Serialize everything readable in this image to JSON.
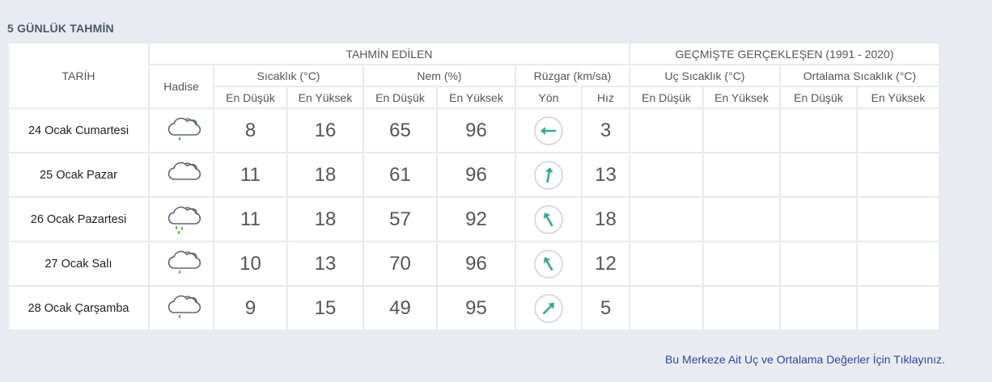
{
  "title": "5 GÜNLÜK TAHMİN",
  "headers": {
    "date": "TARİH",
    "forecast": "TAHMİN EDİLEN",
    "history": "GEÇMİŞTE GERÇEKLEŞEN (1991 - 2020)",
    "event": "Hadise",
    "temperature": "Sıcaklık (°C)",
    "humidity": "Nem (%)",
    "wind": "Rüzgar (km/sa)",
    "extreme_temp": "Uç Sıcaklık (°C)",
    "avg_temp": "Ortalama Sıcaklık (°C)",
    "min": "En Düşük",
    "max": "En Yüksek",
    "direction": "Yön",
    "speed": "Hız"
  },
  "rows": [
    {
      "date": "24 Ocak Cumartesi",
      "icon": "cloud-rain-icon",
      "temp_min": "8",
      "temp_max": "16",
      "hum_min": "65",
      "hum_max": "96",
      "wind_dir_deg": 270,
      "wind_speed": "3"
    },
    {
      "date": "25 Ocak Pazar",
      "icon": "cloud-icon",
      "temp_min": "11",
      "temp_max": "18",
      "hum_min": "61",
      "hum_max": "96",
      "wind_dir_deg": 10,
      "wind_speed": "13"
    },
    {
      "date": "26 Ocak Pazartesi",
      "icon": "showers-icon",
      "temp_min": "11",
      "temp_max": "18",
      "hum_min": "57",
      "hum_max": "92",
      "wind_dir_deg": 330,
      "wind_speed": "18"
    },
    {
      "date": "27 Ocak Salı",
      "icon": "cloud-rain-icon",
      "temp_min": "10",
      "temp_max": "13",
      "hum_min": "70",
      "hum_max": "96",
      "wind_dir_deg": 330,
      "wind_speed": "12"
    },
    {
      "date": "28 Ocak Çarşamba",
      "icon": "cloud-rain-icon",
      "temp_min": "9",
      "temp_max": "15",
      "hum_min": "49",
      "hum_max": "95",
      "wind_dir_deg": 45,
      "wind_speed": "5"
    }
  ],
  "footer_link": "Bu Merkeze Ait Uç ve Ortalama Değerler İçin Tıklayınız.",
  "colors": {
    "low": "#3a87b8",
    "high": "#d9414e",
    "hum_low": "#e2a12d",
    "hum_high": "#666f7e",
    "wind": "#2eab96"
  }
}
